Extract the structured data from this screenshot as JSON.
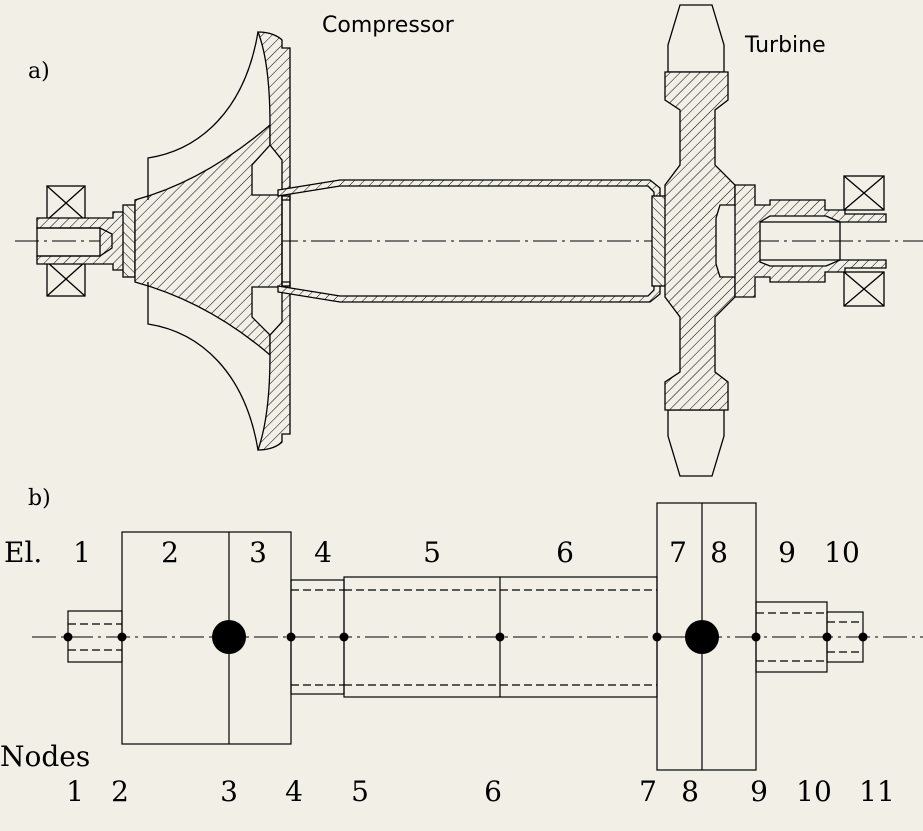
{
  "colors": {
    "background": "#f2efe6",
    "ink": "#000000"
  },
  "panel_a": {
    "label": "a)",
    "compressor_label": "Compressor",
    "turbine_label": "Turbine"
  },
  "panel_b": {
    "label": "b)",
    "elements_label": "El.",
    "nodes_label": "Nodes",
    "element_numbers": [
      "1",
      "2",
      "3",
      "4",
      "5",
      "6",
      "7",
      "8",
      "9",
      "10"
    ],
    "node_numbers": [
      "1",
      "2",
      "3",
      "4",
      "5",
      "6",
      "7",
      "8",
      "9",
      "10",
      "11"
    ],
    "large_mass_nodes": [
      "3",
      "8"
    ]
  }
}
